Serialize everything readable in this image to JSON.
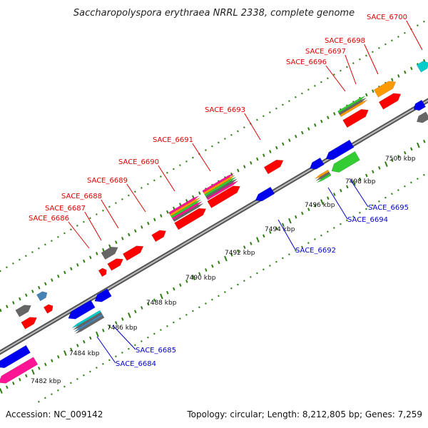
{
  "title": "Saccharopolyspora erythraea NRRL 2338, complete genome",
  "accession": "Accession: NC_009142",
  "summary": "Topology: circular; Length: 8,212,805 bp; Genes: 7,259",
  "colors": {
    "backbone": "#888888",
    "tick": "#2e7d12",
    "forward_label": "#e00000",
    "reverse_label": "#0000cc",
    "gene_red": "#ff0000",
    "gene_blue": "#0000ee",
    "gene_gray": "#666666",
    "gene_orange": "#ff9900",
    "gene_green": "#33cc33",
    "gene_pink": "#ff1493",
    "gene_cyan": "#00cccc",
    "gene_steel": "#4682b4"
  },
  "scale_labels": [
    "7482 kbp",
    "7484 kbp",
    "7486 kbp",
    "7488 kbp",
    "7490 kbp",
    "7492 kbp",
    "7494 kbp",
    "7496 kbp",
    "7498 kbp",
    "7500 kbp"
  ],
  "forward_genes": [
    "SACE_6686",
    "SACE_6687",
    "SACE_6688",
    "SACE_6689",
    "SACE_6690",
    "SACE_6691",
    "SACE_6693",
    "SACE_6696",
    "SACE_6697",
    "SACE_6698",
    "SACE_6700"
  ],
  "reverse_genes": [
    "SACE_6684",
    "SACE_6685",
    "SACE_6692",
    "SACE_6694",
    "SACE_6695"
  ]
}
